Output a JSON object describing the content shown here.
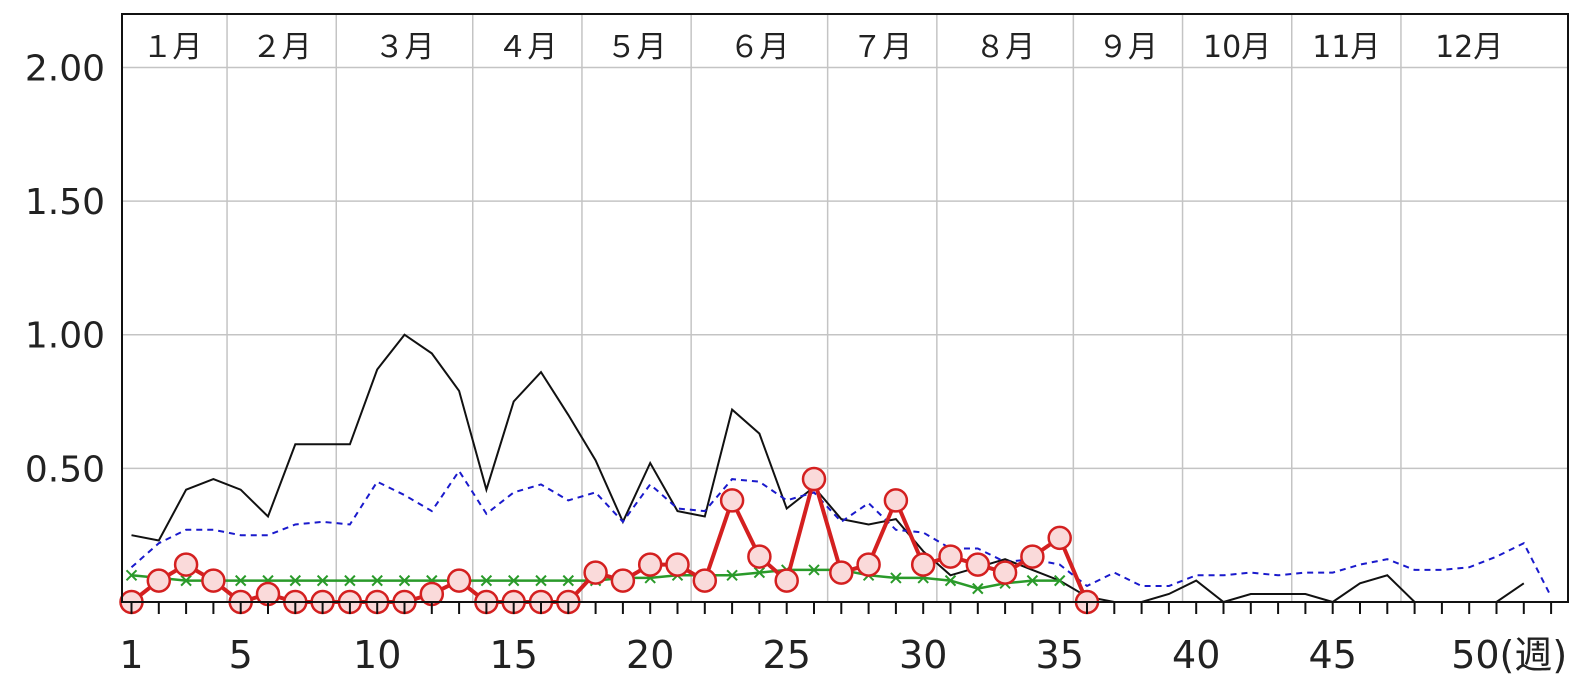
{
  "chart_data": {
    "type": "line",
    "title": "",
    "xlabel": "",
    "ylabel": "",
    "xlim": [
      1,
      53
    ],
    "ylim": [
      0,
      2.2
    ],
    "grid": true,
    "x_tick_labels": [
      "1",
      "5",
      "10",
      "15",
      "20",
      "25",
      "30",
      "35",
      "40",
      "45",
      "50(週)"
    ],
    "x_tick_values": [
      1,
      5,
      10,
      15,
      20,
      25,
      30,
      35,
      40,
      45,
      50
    ],
    "y_tick_labels": [
      "0.50",
      "1.00",
      "1.50",
      "2.00"
    ],
    "y_tick_values": [
      0.5,
      1.0,
      1.5,
      2.0
    ],
    "months": [
      {
        "label": "１月",
        "start": 1,
        "end": 5
      },
      {
        "label": "２月",
        "start": 5,
        "end": 9
      },
      {
        "label": "３月",
        "start": 9,
        "end": 14
      },
      {
        "label": "４月",
        "start": 14,
        "end": 18
      },
      {
        "label": "５月",
        "start": 18,
        "end": 22
      },
      {
        "label": "６月",
        "start": 22,
        "end": 27
      },
      {
        "label": "７月",
        "start": 27,
        "end": 31
      },
      {
        "label": "８月",
        "start": 31,
        "end": 36
      },
      {
        "label": "９月",
        "start": 36,
        "end": 40
      },
      {
        "label": "10月",
        "start": 40,
        "end": 44
      },
      {
        "label": "11月",
        "start": 44,
        "end": 48
      },
      {
        "label": "12月",
        "start": 48,
        "end": 53
      }
    ],
    "series": [
      {
        "style": "black-solid",
        "color": "#111111",
        "x": [
          1,
          2,
          3,
          4,
          5,
          6,
          7,
          8,
          9,
          10,
          11,
          12,
          13,
          14,
          15,
          16,
          17,
          18,
          19,
          20,
          21,
          22,
          23,
          24,
          25,
          26,
          27,
          28,
          29,
          30,
          31,
          32,
          33,
          34,
          35,
          36,
          37,
          38,
          39,
          40,
          41,
          42,
          43,
          44,
          45,
          46,
          47,
          48,
          49,
          50,
          51,
          52
        ],
        "values": [
          0.25,
          0.23,
          0.42,
          0.46,
          0.42,
          0.32,
          0.59,
          0.59,
          0.59,
          0.87,
          1.0,
          0.93,
          0.79,
          0.42,
          0.75,
          0.86,
          0.7,
          0.53,
          0.3,
          0.52,
          0.34,
          0.32,
          0.72,
          0.63,
          0.35,
          0.43,
          0.31,
          0.29,
          0.31,
          0.19,
          0.1,
          0.13,
          0.16,
          0.12,
          0.08,
          0.02,
          0.0,
          0.0,
          0.03,
          0.08,
          0.0,
          0.03,
          0.03,
          0.03,
          0.0,
          0.07,
          0.1,
          0.0,
          0.0,
          0.0,
          0.0,
          0.07
        ]
      },
      {
        "style": "blue-dashed",
        "color": "#1a1acc",
        "x": [
          1,
          2,
          3,
          4,
          5,
          6,
          7,
          8,
          9,
          10,
          11,
          12,
          13,
          14,
          15,
          16,
          17,
          18,
          19,
          20,
          21,
          22,
          23,
          24,
          25,
          26,
          27,
          28,
          29,
          30,
          31,
          32,
          33,
          34,
          35,
          36,
          37,
          38,
          39,
          40,
          41,
          42,
          43,
          44,
          45,
          46,
          47,
          48,
          49,
          50,
          51,
          52,
          53
        ],
        "values": [
          0.13,
          0.22,
          0.27,
          0.27,
          0.25,
          0.25,
          0.29,
          0.3,
          0.29,
          0.45,
          0.4,
          0.34,
          0.49,
          0.33,
          0.41,
          0.44,
          0.38,
          0.41,
          0.3,
          0.44,
          0.35,
          0.34,
          0.46,
          0.45,
          0.38,
          0.41,
          0.3,
          0.37,
          0.27,
          0.26,
          0.2,
          0.2,
          0.15,
          0.16,
          0.14,
          0.06,
          0.11,
          0.06,
          0.06,
          0.1,
          0.1,
          0.11,
          0.1,
          0.11,
          0.11,
          0.14,
          0.16,
          0.12,
          0.12,
          0.13,
          0.17,
          0.22,
          0.02
        ]
      },
      {
        "style": "green-cross",
        "color": "#2a9a2a",
        "x": [
          1,
          2,
          3,
          4,
          5,
          6,
          7,
          8,
          9,
          10,
          11,
          12,
          13,
          14,
          15,
          16,
          17,
          18,
          19,
          20,
          21,
          22,
          23,
          24,
          25,
          26,
          27,
          28,
          29,
          30,
          31,
          32,
          33,
          34,
          35
        ],
        "values": [
          0.1,
          0.09,
          0.08,
          0.08,
          0.08,
          0.08,
          0.08,
          0.08,
          0.08,
          0.08,
          0.08,
          0.08,
          0.08,
          0.08,
          0.08,
          0.08,
          0.08,
          0.08,
          0.09,
          0.09,
          0.1,
          0.1,
          0.1,
          0.11,
          0.12,
          0.12,
          0.12,
          0.1,
          0.09,
          0.09,
          0.08,
          0.05,
          0.07,
          0.08,
          0.08
        ]
      },
      {
        "style": "red-circle",
        "color": "#d42020",
        "x": [
          1,
          2,
          3,
          4,
          5,
          6,
          7,
          8,
          9,
          10,
          11,
          12,
          13,
          14,
          15,
          16,
          17,
          18,
          19,
          20,
          21,
          22,
          23,
          24,
          25,
          26,
          27,
          28,
          29,
          30,
          31,
          32,
          33,
          34,
          35,
          36
        ],
        "values": [
          0.0,
          0.08,
          0.14,
          0.08,
          0.0,
          0.03,
          0.0,
          0.0,
          0.0,
          0.0,
          0.0,
          0.03,
          0.08,
          0.0,
          0.0,
          0.0,
          0.0,
          0.11,
          0.08,
          0.14,
          0.14,
          0.08,
          0.38,
          0.17,
          0.08,
          0.46,
          0.11,
          0.14,
          0.38,
          0.14,
          0.17,
          0.14,
          0.11,
          0.17,
          0.24,
          0.0
        ]
      }
    ]
  }
}
